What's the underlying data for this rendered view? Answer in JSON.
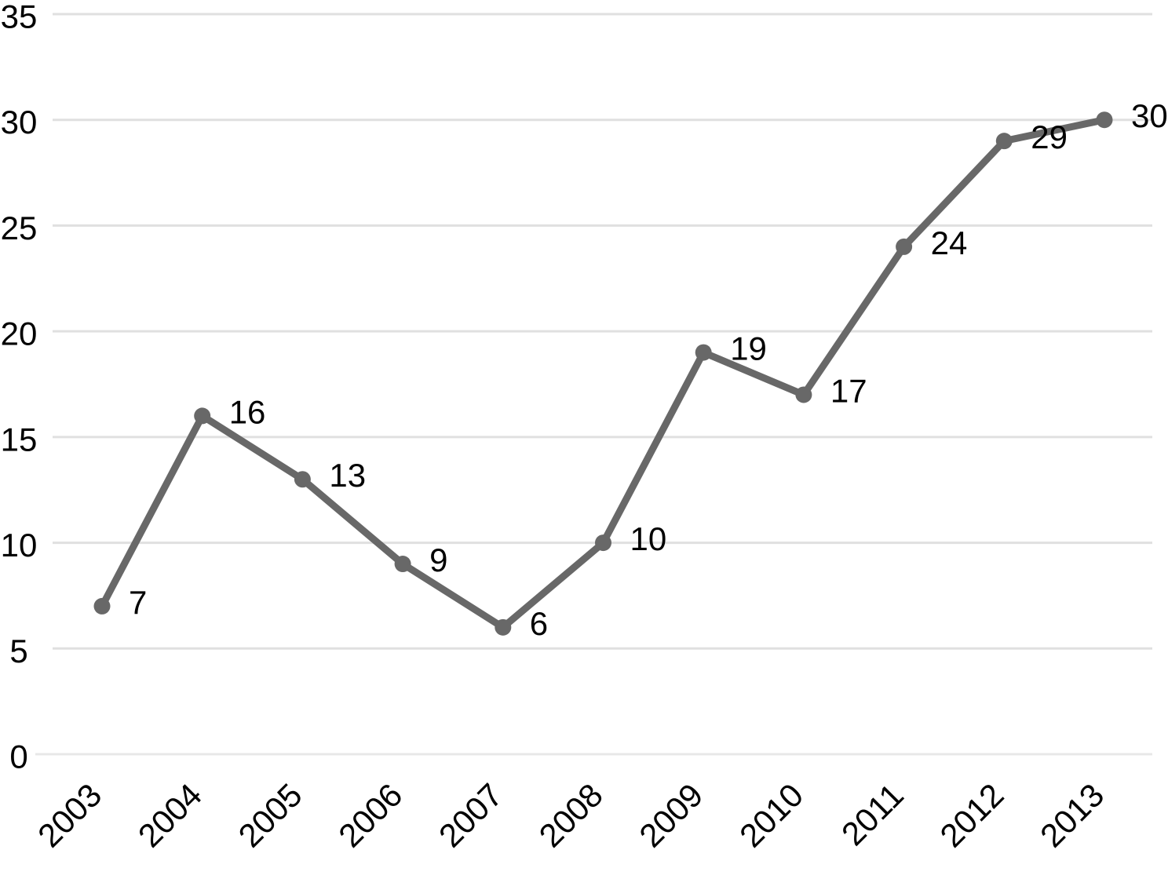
{
  "chart_data": {
    "type": "line",
    "title": "",
    "xlabel": "",
    "ylabel": "",
    "categories": [
      "2003",
      "2004",
      "2005",
      "2006",
      "2007",
      "2008",
      "2009",
      "2010",
      "2011",
      "2012",
      "2013"
    ],
    "series": [
      {
        "name": "series-1",
        "values": [
          7,
          16,
          13,
          9,
          6,
          10,
          19,
          17,
          24,
          29,
          30
        ]
      }
    ],
    "data_labels": [
      7,
      16,
      13,
      9,
      6,
      10,
      19,
      17,
      24,
      29,
      30
    ],
    "ylim": [
      0,
      35
    ],
    "y_ticks": [
      0,
      5,
      10,
      15,
      20,
      25,
      30,
      35
    ],
    "grid": "horizontal",
    "legend": "none",
    "x_label_rotation_deg": -45,
    "colors": {
      "line": "#686868",
      "marker": "#686868",
      "gridline": "#e0e0e0",
      "axis_line": "#e8e8e8",
      "tick_text": "#000000",
      "data_label_text": "#000000",
      "background": "#ffffff"
    }
  }
}
